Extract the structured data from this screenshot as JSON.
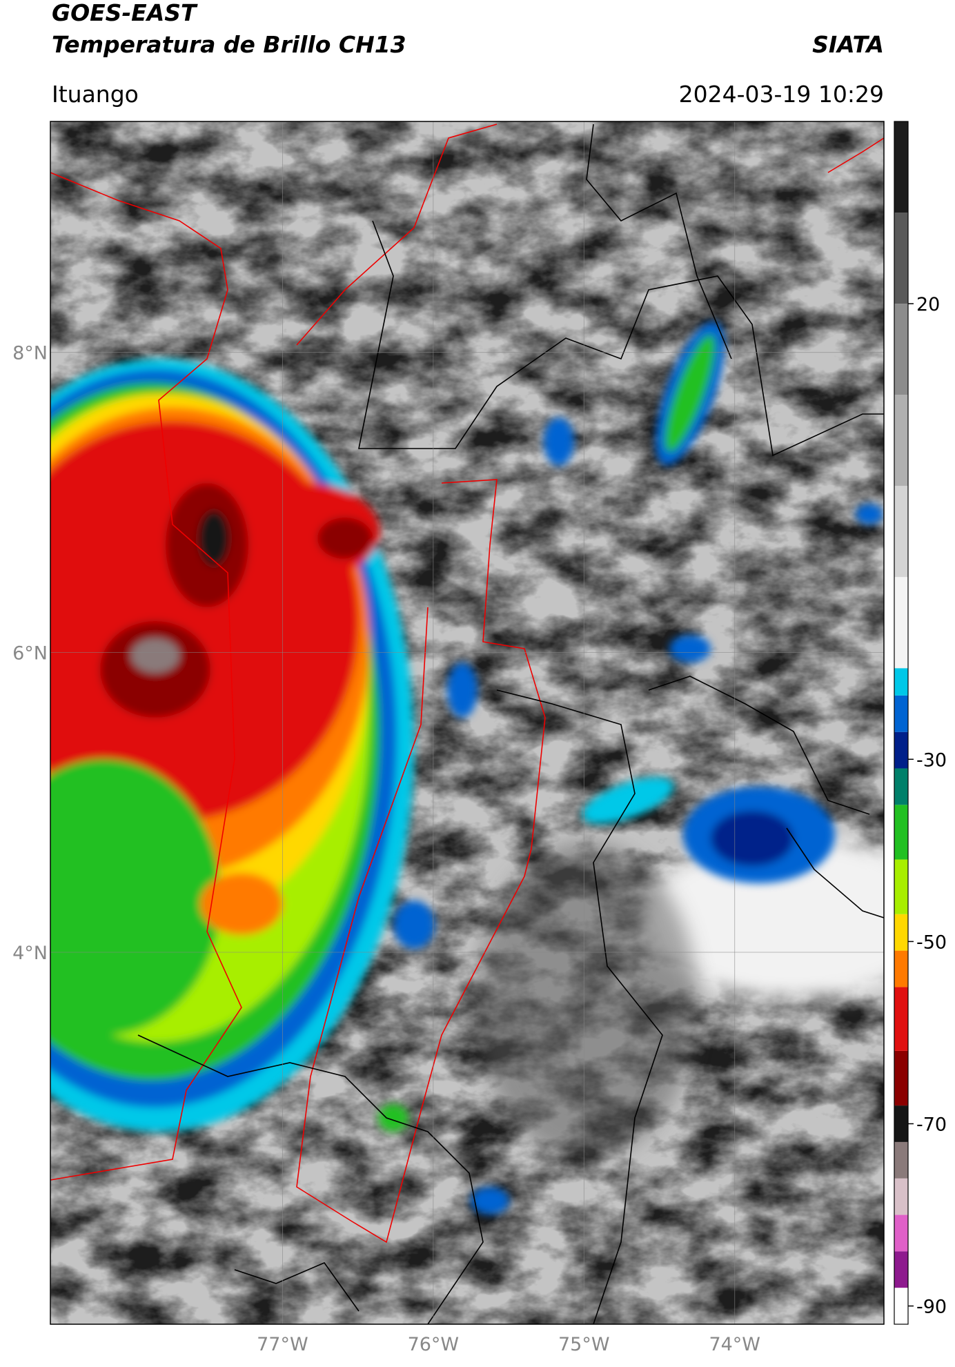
{
  "map": {
    "title": "GOES-EAST",
    "subtitle": "Temperatura de Brillo CH13",
    "source": "SIATA",
    "location": "Ituango",
    "datetime": "2024-03-19 10:29",
    "xlim": [
      -78.54,
      -73.01
    ],
    "ylim": [
      1.52,
      9.54
    ],
    "xticks": [
      {
        "value": -77,
        "label": "77°W"
      },
      {
        "value": -76,
        "label": "76°W"
      },
      {
        "value": -75,
        "label": "75°W"
      },
      {
        "value": -74,
        "label": "74°W"
      }
    ],
    "yticks": [
      {
        "value": 4,
        "label": "4°N"
      },
      {
        "value": 6,
        "label": "6°N"
      },
      {
        "value": 8,
        "label": "8°N"
      }
    ],
    "grid": true,
    "colorbar": {
      "lim": [
        -92,
        40
      ],
      "ticks": [
        -90,
        -70,
        -50,
        -30,
        20
      ],
      "segments": [
        {
          "from": -92,
          "to": -88,
          "color": "#ffffff"
        },
        {
          "from": -88,
          "to": -84,
          "color": "#8e1a8e"
        },
        {
          "from": -84,
          "to": -80,
          "color": "#e060c8"
        },
        {
          "from": -80,
          "to": -76,
          "color": "#d8c0c8"
        },
        {
          "from": -76,
          "to": -72,
          "color": "#8a7a7a"
        },
        {
          "from": -72,
          "to": -68,
          "color": "#151515"
        },
        {
          "from": -68,
          "to": -62,
          "color": "#8b0000"
        },
        {
          "from": -62,
          "to": -55,
          "color": "#e01010"
        },
        {
          "from": -55,
          "to": -51,
          "color": "#ff7a00"
        },
        {
          "from": -51,
          "to": -47,
          "color": "#ffd800"
        },
        {
          "from": -47,
          "to": -41,
          "color": "#a8ee00"
        },
        {
          "from": -41,
          "to": -35,
          "color": "#22c022"
        },
        {
          "from": -35,
          "to": -31,
          "color": "#00806a"
        },
        {
          "from": -31,
          "to": -27,
          "color": "#00208a"
        },
        {
          "from": -27,
          "to": -23,
          "color": "#0064d2"
        },
        {
          "from": -23,
          "to": -20,
          "color": "#00c8e8"
        },
        {
          "from": -20,
          "to": -10,
          "color": "#f4f4f4"
        },
        {
          "from": -10,
          "to": 0,
          "color": "#d4d4d4"
        },
        {
          "from": 0,
          "to": 10,
          "color": "#b0b0b0"
        },
        {
          "from": 10,
          "to": 20,
          "color": "#8c8c8c"
        },
        {
          "from": 20,
          "to": 30,
          "color": "#5a5a5a"
        },
        {
          "from": 30,
          "to": 40,
          "color": "#1c1c1c"
        }
      ]
    }
  }
}
